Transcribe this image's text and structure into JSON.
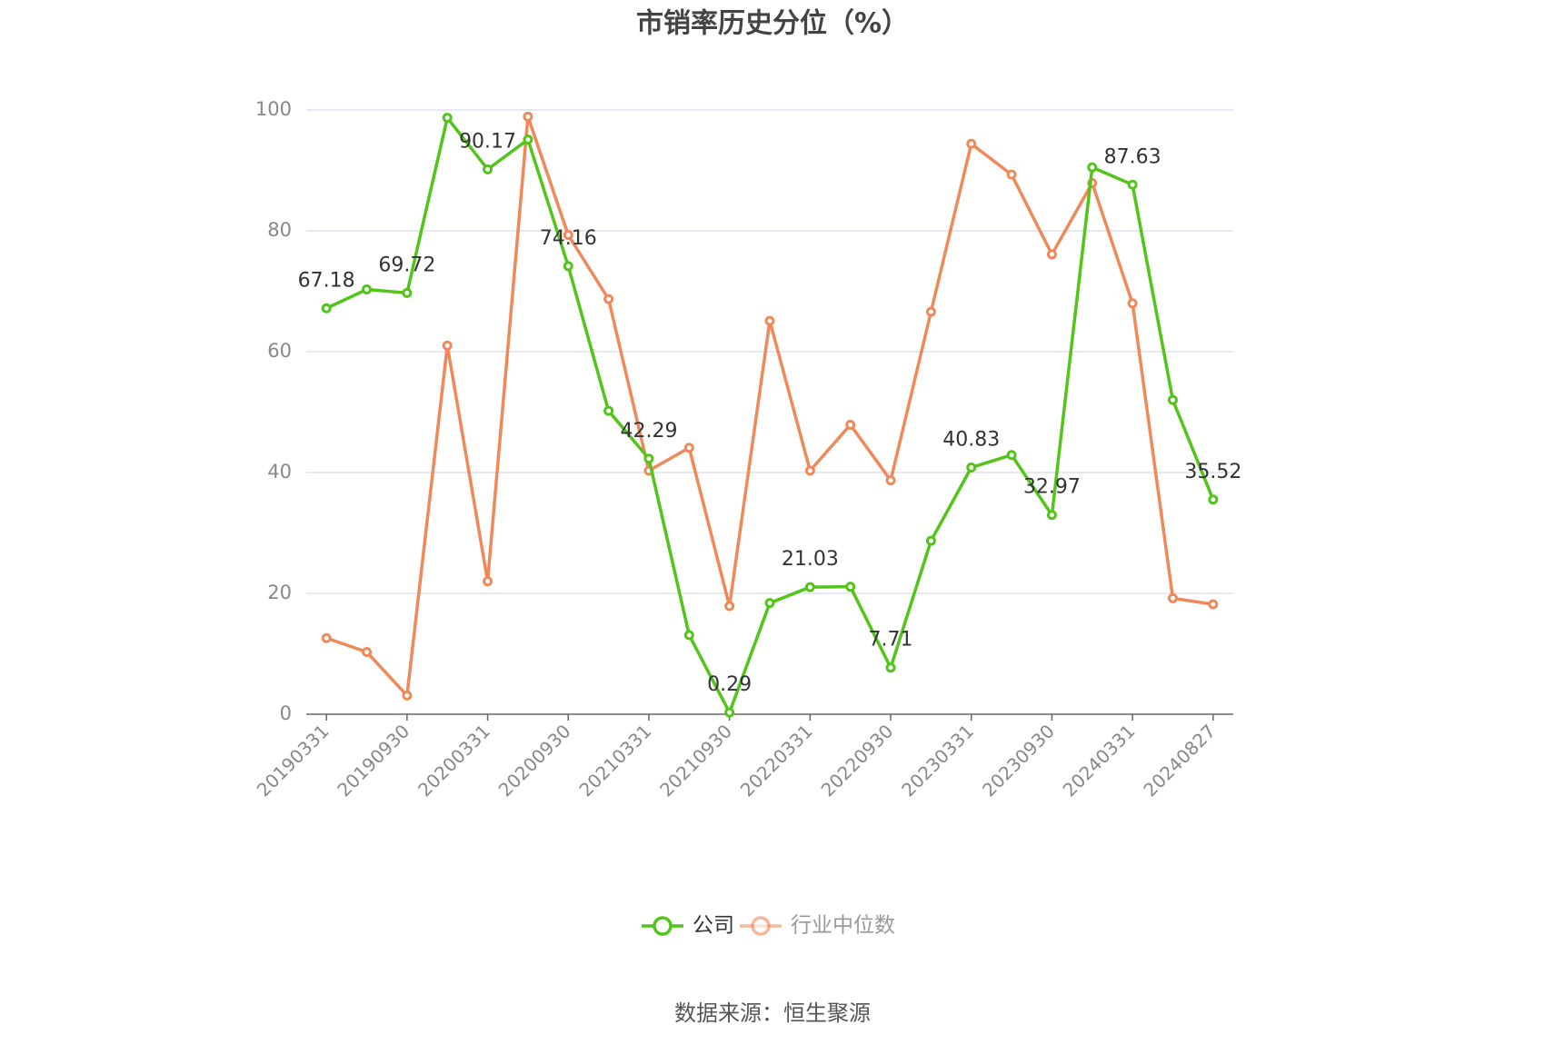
{
  "chart_data": {
    "type": "line",
    "title": "市销率历史分位（%）",
    "categories": [
      "20190331",
      null,
      "20190930",
      null,
      "20200331",
      null,
      "20200930",
      null,
      "20210331",
      null,
      "20210930",
      null,
      "20220331",
      null,
      "20220930",
      null,
      "20230331",
      null,
      "20230930",
      null,
      "20240331",
      null,
      "20240827"
    ],
    "series": [
      {
        "name": "公司",
        "color": "#52c41a",
        "values": [
          67.18,
          70.3,
          69.72,
          98.7,
          90.17,
          95.1,
          74.16,
          50.2,
          42.29,
          13.1,
          0.29,
          18.4,
          21.03,
          21.1,
          7.71,
          28.7,
          40.83,
          42.9,
          32.97,
          90.5,
          87.63,
          52.0,
          35.52
        ]
      },
      {
        "name": "行业中位数",
        "color": "#f0895a",
        "values": [
          12.6,
          10.3,
          3.1,
          61.0,
          22.0,
          98.9,
          79.3,
          68.7,
          40.3,
          44.1,
          17.9,
          65.1,
          40.3,
          47.9,
          38.7,
          66.6,
          94.4,
          89.3,
          76.1,
          87.9,
          68.0,
          19.2,
          18.2
        ]
      }
    ],
    "ylim": [
      0,
      100
    ],
    "yticks": [
      0,
      20,
      40,
      60,
      80,
      100
    ],
    "grid": true,
    "legend": "bottom",
    "source": "数据来源：恒生聚源"
  }
}
